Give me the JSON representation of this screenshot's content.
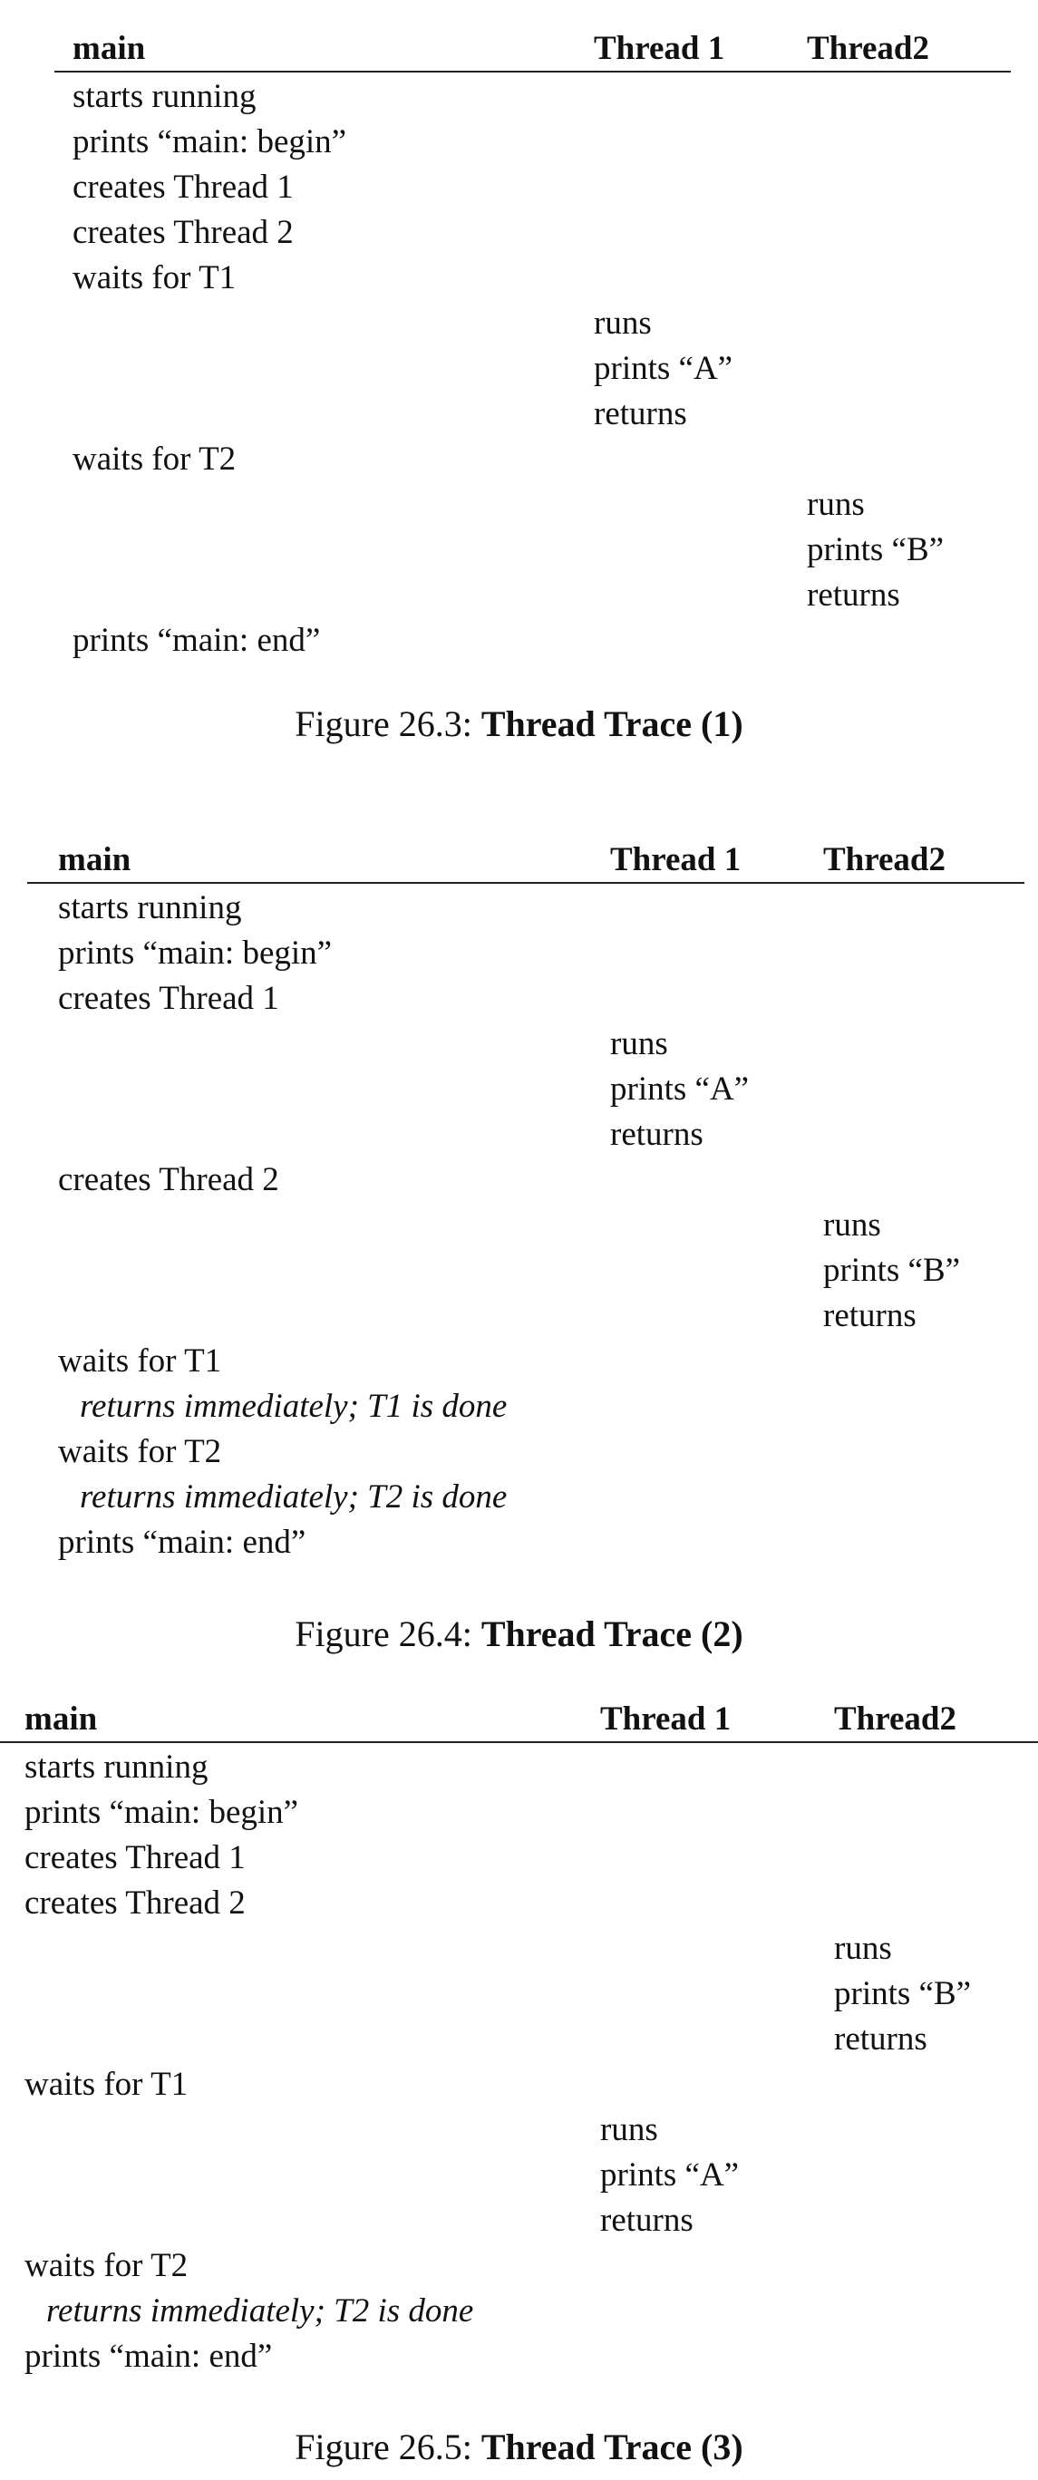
{
  "figures": [
    {
      "caption_prefix": "Figure 26.3: ",
      "caption_title": "Thread Trace (1)",
      "headers": [
        "main",
        "Thread 1",
        "Thread2"
      ],
      "rows": [
        {
          "col": 0,
          "text": "starts running"
        },
        {
          "col": 0,
          "text": "prints “main: begin”"
        },
        {
          "col": 0,
          "text": "creates Thread 1"
        },
        {
          "col": 0,
          "text": "creates Thread 2"
        },
        {
          "col": 0,
          "text": "waits for T1"
        },
        {
          "col": 1,
          "text": "runs"
        },
        {
          "col": 1,
          "text": "prints “A”"
        },
        {
          "col": 1,
          "text": "returns"
        },
        {
          "col": 0,
          "text": "waits for T2"
        },
        {
          "col": 2,
          "text": "runs"
        },
        {
          "col": 2,
          "text": "prints “B”"
        },
        {
          "col": 2,
          "text": "returns"
        },
        {
          "col": 0,
          "text": "prints “main: end”"
        }
      ]
    },
    {
      "caption_prefix": "Figure 26.4: ",
      "caption_title": "Thread Trace (2)",
      "headers": [
        "main",
        "Thread 1",
        "Thread2"
      ],
      "rows": [
        {
          "col": 0,
          "text": "starts running"
        },
        {
          "col": 0,
          "text": "prints “main: begin”"
        },
        {
          "col": 0,
          "text": "creates Thread 1"
        },
        {
          "col": 1,
          "text": "runs"
        },
        {
          "col": 1,
          "text": "prints “A”"
        },
        {
          "col": 1,
          "text": "returns"
        },
        {
          "col": 0,
          "text": "creates Thread 2"
        },
        {
          "col": 2,
          "text": "runs"
        },
        {
          "col": 2,
          "text": "prints “B”"
        },
        {
          "col": 2,
          "text": "returns"
        },
        {
          "col": 0,
          "text": "waits for T1"
        },
        {
          "col": 0,
          "text": "returns immediately; T1 is done",
          "note": true
        },
        {
          "col": 0,
          "text": "waits for T2"
        },
        {
          "col": 0,
          "text": "returns immediately; T2 is done",
          "note": true
        },
        {
          "col": 0,
          "text": "prints “main: end”"
        }
      ]
    },
    {
      "caption_prefix": "Figure 26.5: ",
      "caption_title": "Thread Trace (3)",
      "headers": [
        "main",
        "Thread 1",
        "Thread2"
      ],
      "rows": [
        {
          "col": 0,
          "text": "starts running"
        },
        {
          "col": 0,
          "text": "prints “main: begin”"
        },
        {
          "col": 0,
          "text": "creates Thread 1"
        },
        {
          "col": 0,
          "text": "creates Thread 2"
        },
        {
          "col": 2,
          "text": "runs"
        },
        {
          "col": 2,
          "text": "prints “B”"
        },
        {
          "col": 2,
          "text": "returns"
        },
        {
          "col": 0,
          "text": "waits for T1"
        },
        {
          "col": 1,
          "text": "runs"
        },
        {
          "col": 1,
          "text": "prints “A”"
        },
        {
          "col": 1,
          "text": "returns"
        },
        {
          "col": 0,
          "text": "waits for T2"
        },
        {
          "col": 0,
          "text": "returns immediately; T2 is done",
          "note": true
        },
        {
          "col": 0,
          "text": "prints “main: end”"
        }
      ]
    }
  ]
}
